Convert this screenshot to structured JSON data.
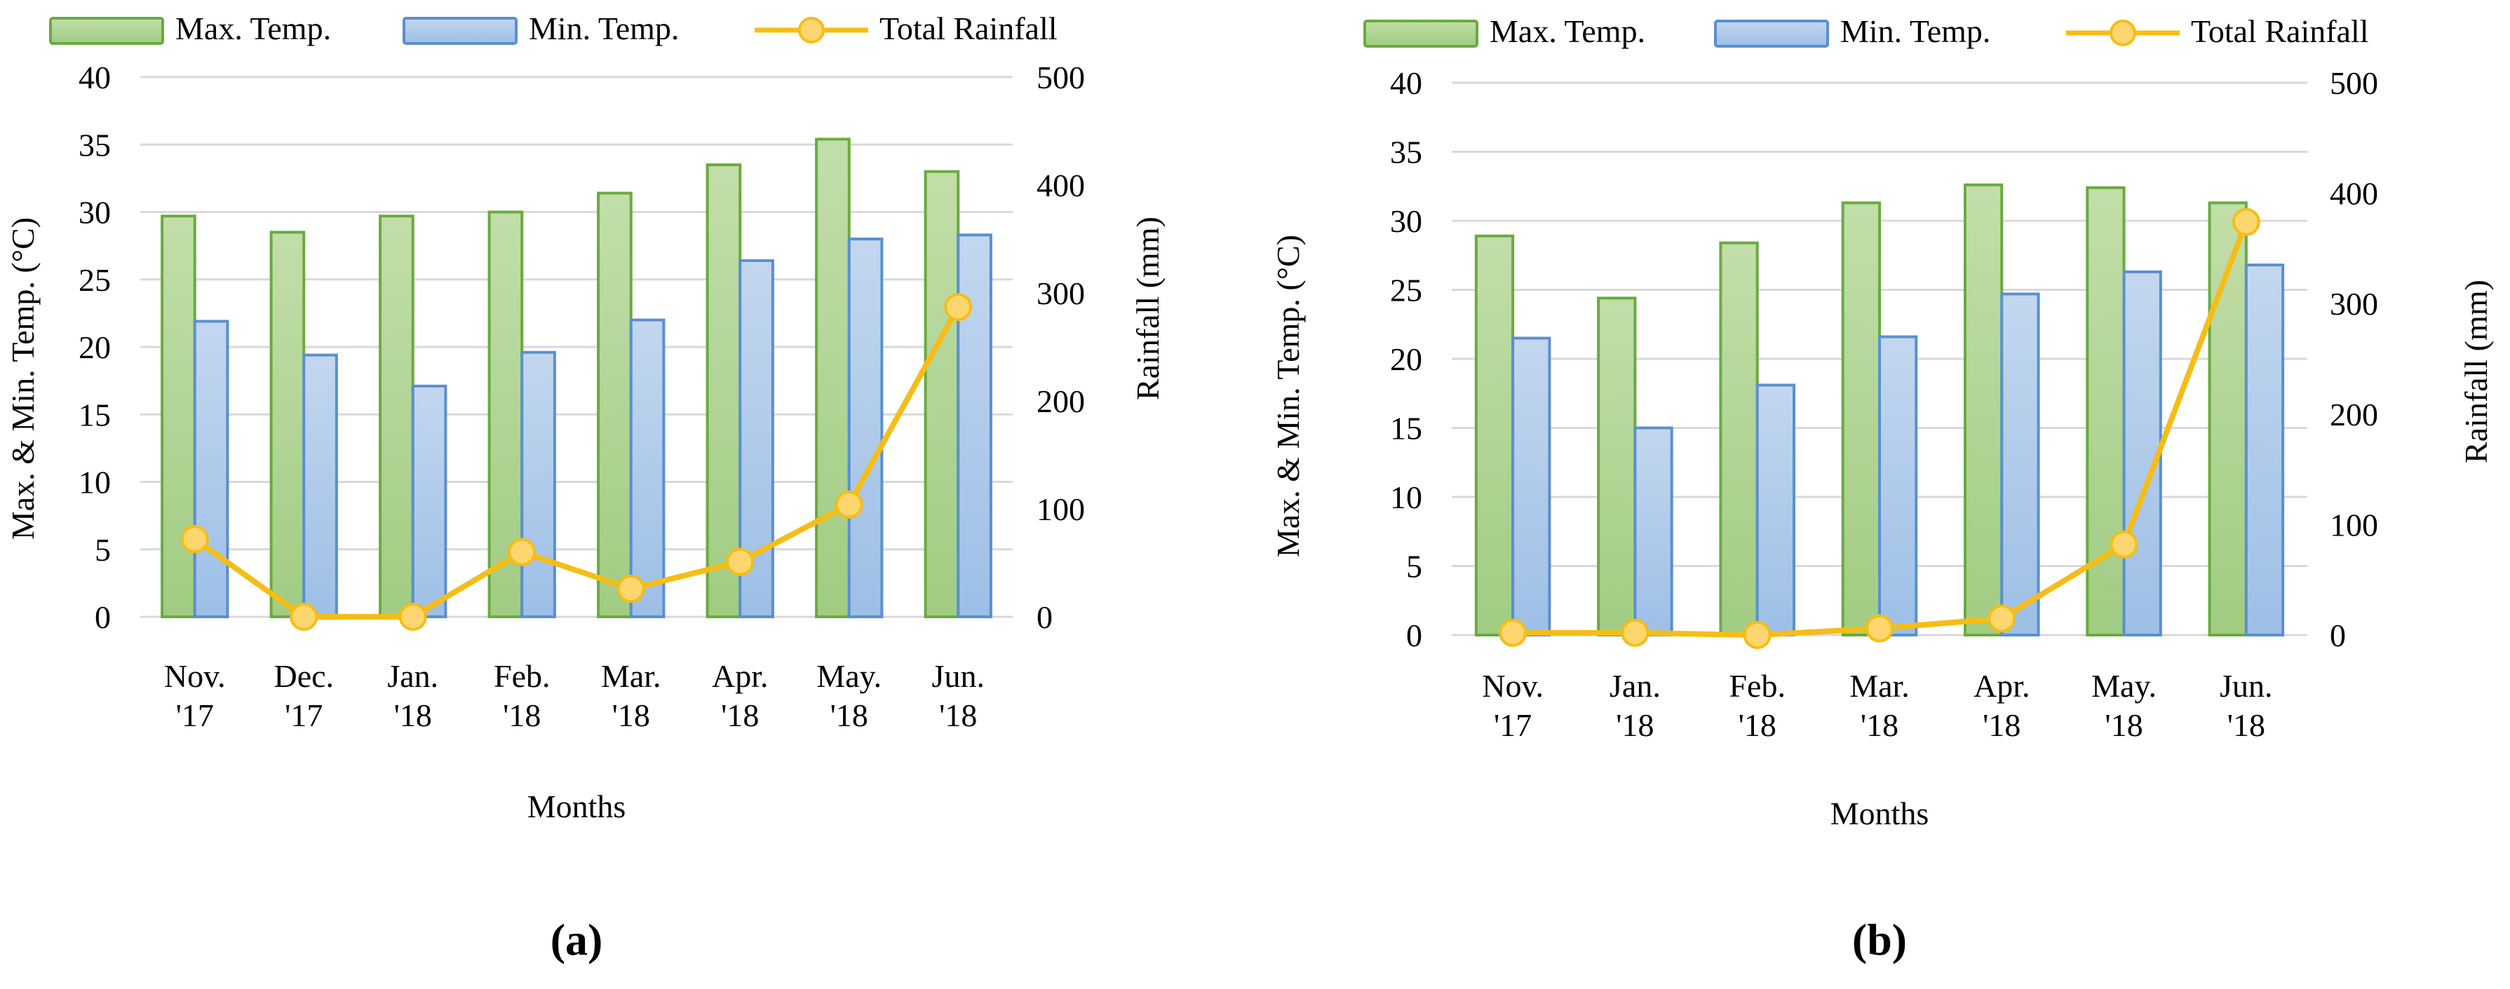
{
  "legend": {
    "max_label": "Max. Temp.",
    "min_label": "Min. Temp.",
    "rain_label": "Total Rainfall"
  },
  "colors": {
    "max_fill_top": "#c2dea9",
    "max_fill_bottom": "#a1cc82",
    "max_stroke": "#6aab3f",
    "min_fill_top": "#c3d7ef",
    "min_fill_bottom": "#9dbfe6",
    "min_stroke": "#5b8fd0",
    "rain_line": "#f6bd16",
    "rain_marker_fill": "#fdd66f",
    "grid": "#d9d9d9"
  },
  "chart_data": [
    {
      "type": "bar",
      "panel_label": "(a)",
      "title": "",
      "categories": [
        "Nov. '17",
        "Dec. '17",
        "Jan. '18",
        "Feb. '18",
        "Mar. '18",
        "Apr. '18",
        "May. '18",
        "Jun. '18"
      ],
      "category_lines": [
        [
          "Nov.",
          "'17"
        ],
        [
          "Dec.",
          "'17"
        ],
        [
          "Jan.",
          "'18"
        ],
        [
          "Feb.",
          "'18"
        ],
        [
          "Mar.",
          "'18"
        ],
        [
          "Apr.",
          "'18"
        ],
        [
          "May.",
          "'18"
        ],
        [
          "Jun.",
          "'18"
        ]
      ],
      "series": [
        {
          "name": "Max. Temp.",
          "kind": "bar",
          "axis": "left",
          "values": [
            29.7,
            28.5,
            29.7,
            30.0,
            31.4,
            33.5,
            35.4,
            33.0
          ]
        },
        {
          "name": "Min. Temp.",
          "kind": "bar",
          "axis": "left",
          "values": [
            21.9,
            19.4,
            17.1,
            19.6,
            22.0,
            26.4,
            28.0,
            28.3
          ]
        },
        {
          "name": "Total Rainfall",
          "kind": "line",
          "axis": "right",
          "values": [
            72,
            0,
            0,
            60,
            26,
            51,
            104,
            287
          ]
        }
      ],
      "xlabel": "Months",
      "ylabel": "Max. & Min. Temp. (°C)",
      "y2label": "Rainfall (mm)",
      "ylim": [
        0,
        40
      ],
      "y2lim": [
        0,
        500
      ],
      "yticks": [
        "0",
        "5",
        "10",
        "15",
        "20",
        "25",
        "30",
        "35",
        "40"
      ],
      "y2ticks": [
        "0",
        "100",
        "200",
        "300",
        "400",
        "500"
      ],
      "grid": true,
      "legend_position": "top"
    },
    {
      "type": "bar",
      "panel_label": "(b)",
      "title": "",
      "categories": [
        "Nov. '17",
        "Jan. '18",
        "Feb. '18",
        "Mar. '18",
        "Apr. '18",
        "May. '18",
        "Jun. '18"
      ],
      "category_lines": [
        [
          "Nov.",
          "'17"
        ],
        [
          "Jan.",
          "'18"
        ],
        [
          "Feb.",
          "'18"
        ],
        [
          "Mar.",
          "'18"
        ],
        [
          "Apr.",
          "'18"
        ],
        [
          "May.",
          "'18"
        ],
        [
          "Jun.",
          "'18"
        ]
      ],
      "series": [
        {
          "name": "Max. Temp.",
          "kind": "bar",
          "axis": "left",
          "values": [
            28.9,
            24.4,
            28.4,
            31.3,
            32.6,
            32.4,
            31.3
          ]
        },
        {
          "name": "Min. Temp.",
          "kind": "bar",
          "axis": "left",
          "values": [
            21.5,
            15.0,
            18.1,
            21.6,
            24.7,
            26.3,
            26.8
          ]
        },
        {
          "name": "Total Rainfall",
          "kind": "line",
          "axis": "right",
          "values": [
            2,
            2,
            0,
            6,
            15,
            82,
            374
          ]
        }
      ],
      "xlabel": "Months",
      "ylabel": "Max. & Min. Temp. (°C)",
      "y2label": "Rainfall (mm)",
      "ylim": [
        0,
        40
      ],
      "y2lim": [
        0,
        500
      ],
      "yticks": [
        "0",
        "5",
        "10",
        "15",
        "20",
        "25",
        "30",
        "35",
        "40"
      ],
      "y2ticks": [
        "0",
        "100",
        "200",
        "300",
        "400",
        "500"
      ],
      "grid": true,
      "legend_position": "top"
    }
  ]
}
